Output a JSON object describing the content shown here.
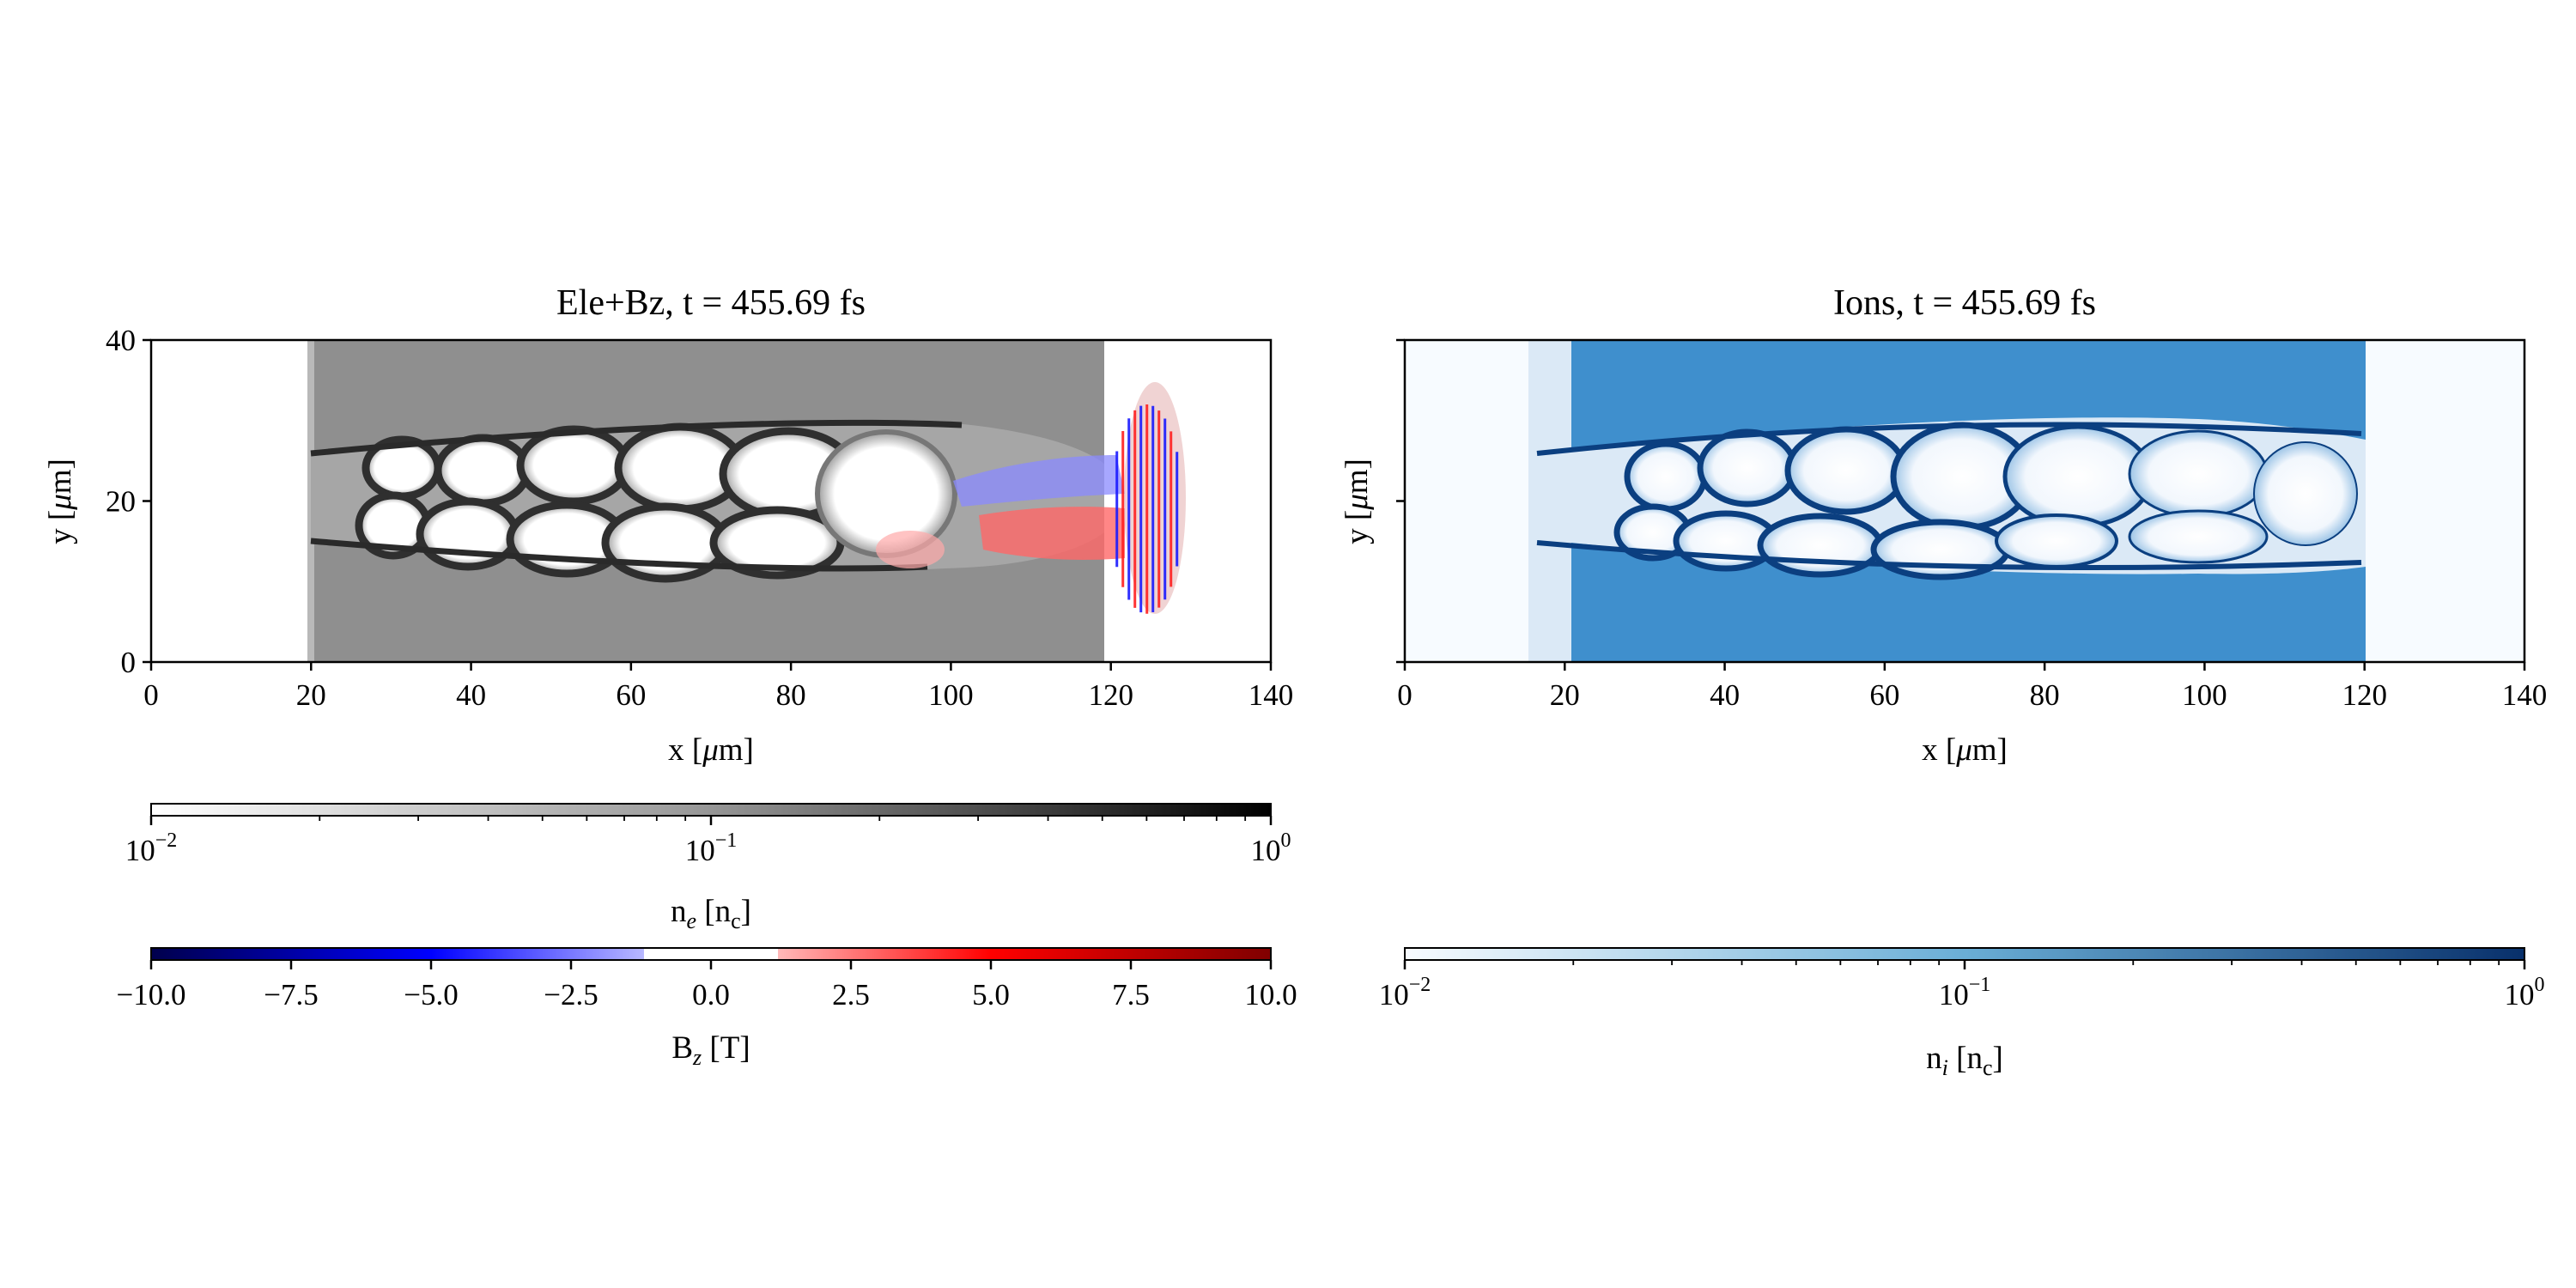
{
  "chart_data": [
    {
      "type": "heatmap",
      "title": "Ele+Bz, t = 455.69 fs",
      "xlabel": "x [μm]",
      "ylabel": "y [μm]",
      "xlim": [
        0,
        140
      ],
      "ylim": [
        0,
        40
      ],
      "xticks": [
        0,
        20,
        40,
        60,
        80,
        100,
        120,
        140
      ],
      "yticks": [
        0,
        20,
        40
      ],
      "layers": [
        {
          "name": "electron density",
          "colormap": "Greys",
          "colorbar": {
            "label": "n_e [n_c]",
            "scale": "log",
            "range": [
              0.01,
              1
            ],
            "major_ticks": [
              0.01,
              0.1,
              1
            ],
            "tick_labels": [
              "10",
              "10",
              "10"
            ],
            "tick_exponents": [
              "−2",
              "−1",
              "0"
            ]
          },
          "regions": [
            {
              "feature": "dense slab",
              "x": [
                20,
                120
              ],
              "y": [
                0,
                40
              ],
              "level": 0.3
            },
            {
              "feature": "upper channel wall",
              "x": [
                20,
                105
              ],
              "y": [
                26,
                26
              ],
              "level": 0.5
            },
            {
              "feature": "lower channel wall",
              "x": [
                20,
                100
              ],
              "y": [
                14,
                14
              ],
              "level": 0.5
            }
          ]
        },
        {
          "name": "magnetic field",
          "colormap": "seismic",
          "colorbar": {
            "label": "B_z [T]",
            "scale": "linear",
            "range": [
              -10,
              10
            ],
            "ticks": [
              "−10.0",
              "−7.5",
              "−5.0",
              "−2.5",
              "0.0",
              "2.5",
              "5.0",
              "7.5",
              "10.0"
            ],
            "tick_values": [
              -10,
              -7.5,
              -5,
              -2.5,
              0,
              2.5,
              5,
              7.5,
              10
            ]
          },
          "regions": [
            {
              "feature": "negative Bz upper channel",
              "x": [
                100,
                122
              ],
              "y": [
                21,
                26
              ],
              "value": -2.5
            },
            {
              "feature": "positive Bz lower channel",
              "x": [
                104,
                122
              ],
              "y": [
                12,
                19
              ],
              "value": 5
            },
            {
              "feature": "laser pulse oscillations",
              "x": [
                120,
                129
              ],
              "y": [
                6,
                32
              ],
              "value": 10
            }
          ]
        }
      ]
    },
    {
      "type": "heatmap",
      "title": "Ions, t = 455.69 fs",
      "xlabel": "x [μm]",
      "ylabel": "y [μm]",
      "xlim": [
        0,
        140
      ],
      "ylim": [
        0,
        40
      ],
      "xticks": [
        0,
        20,
        40,
        60,
        80,
        100,
        120,
        140
      ],
      "yticks": [
        0,
        20,
        40
      ],
      "colormap": "Blues",
      "colorbar": {
        "label": "n_i [n_c]",
        "scale": "log",
        "range": [
          0.01,
          1
        ],
        "major_ticks": [
          0.01,
          0.1,
          1
        ],
        "tick_labels": [
          "10",
          "10",
          "10"
        ],
        "tick_exponents": [
          "−2",
          "−1",
          "0"
        ]
      },
      "regions": [
        {
          "feature": "ion slab",
          "x": [
            21,
            120
          ],
          "y": [
            0,
            40
          ],
          "level": 0.3
        },
        {
          "feature": "channel",
          "x": [
            20,
            120
          ],
          "y": [
            11,
            30
          ],
          "level": 0.05
        }
      ]
    }
  ],
  "labels": {
    "left_title": "Ele+Bz, t = 455.69 fs",
    "right_title": "Ions, t = 455.69 fs",
    "x_axis": "x [",
    "x_unit": "μ",
    "x_tail": "m]",
    "y_axis": "y [",
    "y_unit": "μ",
    "y_tail": "m]",
    "ne_label_main": "n",
    "ne_label_sub": "e",
    "ne_label_tail": " [n",
    "ne_label_c": "c",
    "ne_label_end": "]",
    "bz_label_main": "B",
    "bz_label_sub": "z",
    "bz_label_tail": " [T]",
    "ni_label_main": "n",
    "ni_label_sub": "i",
    "ni_label_tail": " [n",
    "ni_label_c": "c",
    "ni_label_end": "]"
  },
  "colors": {
    "slab_grey": "#8f8f8f",
    "wall_grey": "#3a3a3a",
    "bz_negative": "#1a1aff",
    "bz_positive": "#ff2020",
    "ion_blue": "#3a8ccc",
    "ion_wall": "#0b3f80"
  }
}
